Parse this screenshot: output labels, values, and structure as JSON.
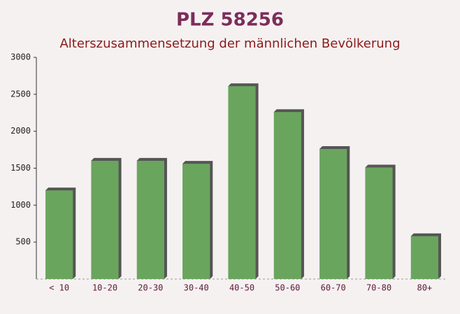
{
  "chart_data": {
    "type": "bar",
    "title": "PLZ 58256",
    "subtitle": "Alterszusammensetzung der männlichen Bevölkerung",
    "categories": [
      "< 10",
      "10-20",
      "20-30",
      "30-40",
      "40-50",
      "50-60",
      "60-70",
      "70-80",
      "80+"
    ],
    "values": [
      1200,
      1600,
      1600,
      1560,
      2610,
      2260,
      1760,
      1510,
      580
    ],
    "color": "#6aa55e",
    "ylim": [
      0,
      3000
    ],
    "yticks": [
      500,
      1000,
      1500,
      2000,
      2500,
      3000
    ],
    "grid": false
  }
}
